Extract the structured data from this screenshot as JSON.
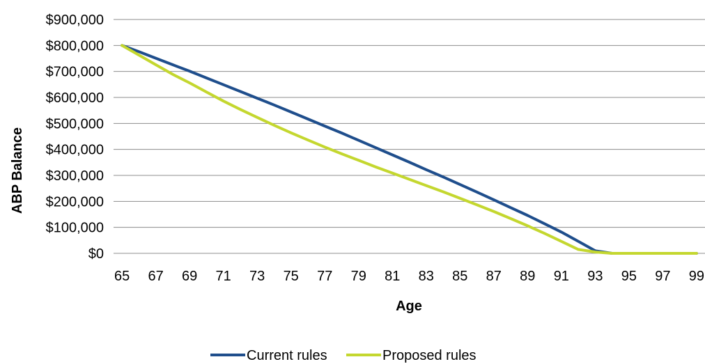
{
  "chart_data": {
    "type": "line",
    "title": "",
    "xlabel": "Age",
    "ylabel": "ABP Balance",
    "x": [
      65,
      66,
      67,
      68,
      69,
      70,
      71,
      72,
      73,
      74,
      75,
      76,
      77,
      78,
      79,
      80,
      81,
      82,
      83,
      84,
      85,
      86,
      87,
      88,
      89,
      90,
      91,
      92,
      93,
      94,
      95,
      96,
      97,
      98,
      99
    ],
    "x_tick_labels": [
      "65",
      "67",
      "69",
      "71",
      "73",
      "75",
      "77",
      "79",
      "81",
      "83",
      "85",
      "87",
      "89",
      "91",
      "93",
      "95",
      "97",
      "99"
    ],
    "y_tick_labels": [
      "$0",
      "$100,000",
      "$200,000",
      "$300,000",
      "$400,000",
      "$500,000",
      "$600,000",
      "$700,000",
      "$800,000",
      "$900,000"
    ],
    "ylim": [
      0,
      900000
    ],
    "grid": "horizontal",
    "legend_position": "bottom",
    "series": [
      {
        "name": "Current rules",
        "color": "#1f4e8c",
        "values": [
          800000,
          776000,
          751000,
          726000,
          701000,
          675000,
          649000,
          623000,
          597000,
          571000,
          544000,
          517000,
          490000,
          463000,
          435000,
          407000,
          379000,
          351000,
          322000,
          294000,
          265000,
          236000,
          206000,
          176000,
          146000,
          114000,
          82000,
          46000,
          10000,
          0,
          0,
          0,
          0,
          0,
          0
        ]
      },
      {
        "name": "Proposed rules",
        "color": "#c4d72f",
        "values": [
          800000,
          763000,
          726000,
          689000,
          656000,
          621000,
          586000,
          554000,
          523000,
          493000,
          464000,
          436000,
          409000,
          383000,
          358000,
          333000,
          309000,
          285000,
          261000,
          237000,
          212000,
          187000,
          161000,
          134000,
          106000,
          77000,
          46000,
          15000,
          5000,
          0,
          0,
          0,
          0,
          0,
          0
        ]
      }
    ]
  }
}
